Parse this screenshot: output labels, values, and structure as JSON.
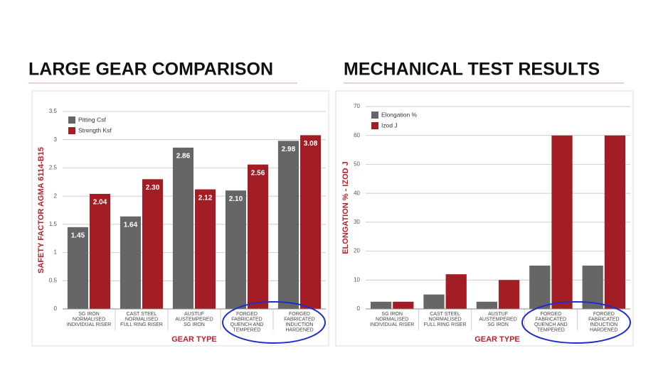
{
  "chart_data": [
    {
      "type": "bar",
      "title": "LARGE GEAR COMPARISON",
      "y_label": "SAFETY FACTOR AGMA 6114-B15",
      "x_label": "GEAR TYPE",
      "categories": [
        [
          "SG IRON",
          "NORMALISED",
          "INDIVIDUAL RISER"
        ],
        [
          "CAST STEEL",
          "NORMALISED",
          "FULL RING RISER"
        ],
        [
          "AUSTUF",
          "AUSTEMPERED",
          "SG IRON"
        ],
        [
          "FORGED",
          "FABRICATED",
          "QUENCH AND",
          "TEMPERED"
        ],
        [
          "FORGED",
          "FABRICATED",
          "INDUCTION",
          "HARDENED"
        ]
      ],
      "series": [
        {
          "name": "Pitting Csf",
          "color": "#666666",
          "values": [
            1.45,
            1.64,
            2.86,
            2.1,
            2.98
          ],
          "value_labels": [
            "1.45",
            "1.64",
            "2.86",
            "2.10",
            "2.98"
          ]
        },
        {
          "name": "Strength Ksf",
          "color": "#a31d24",
          "values": [
            2.04,
            2.3,
            2.12,
            2.56,
            3.08
          ],
          "value_labels": [
            "2.04",
            "2.30",
            "2.12",
            "2.56",
            "3.08"
          ]
        }
      ],
      "ylim": [
        0,
        3.5
      ],
      "yticks": [
        0,
        0.5,
        1,
        1.5,
        2,
        2.5,
        3,
        3.5
      ],
      "grid": true,
      "legend": "top-left"
    },
    {
      "type": "bar",
      "title": "MECHANICAL TEST RESULTS",
      "y_label": "ELONGATION %  -  IZOD J",
      "x_label": "GEAR TYPE",
      "categories": [
        [
          "SG IRON",
          "NORMALISED",
          "INDIVIDUAL RISER"
        ],
        [
          "CAST STEEL",
          "NORMALISED",
          "FULL RING RISER"
        ],
        [
          "AUSTUF",
          "AUSTEMPERED",
          "SG IRON"
        ],
        [
          "FORGED",
          "FABRICATED",
          "QUENCH AND",
          "TEMPERED"
        ],
        [
          "FORGED",
          "FABRICATED",
          "INDUCTION",
          "HARDENED"
        ]
      ],
      "series": [
        {
          "name": "Elongation %",
          "color": "#666666",
          "values": [
            2.5,
            5,
            2.5,
            15,
            15
          ]
        },
        {
          "name": "Izod J",
          "color": "#a31d24",
          "values": [
            2.5,
            12,
            10,
            60,
            60
          ]
        }
      ],
      "ylim": [
        0,
        70
      ],
      "yticks": [
        0,
        10,
        20,
        30,
        40,
        50,
        60,
        70
      ],
      "grid": true,
      "legend": "top-left"
    }
  ]
}
